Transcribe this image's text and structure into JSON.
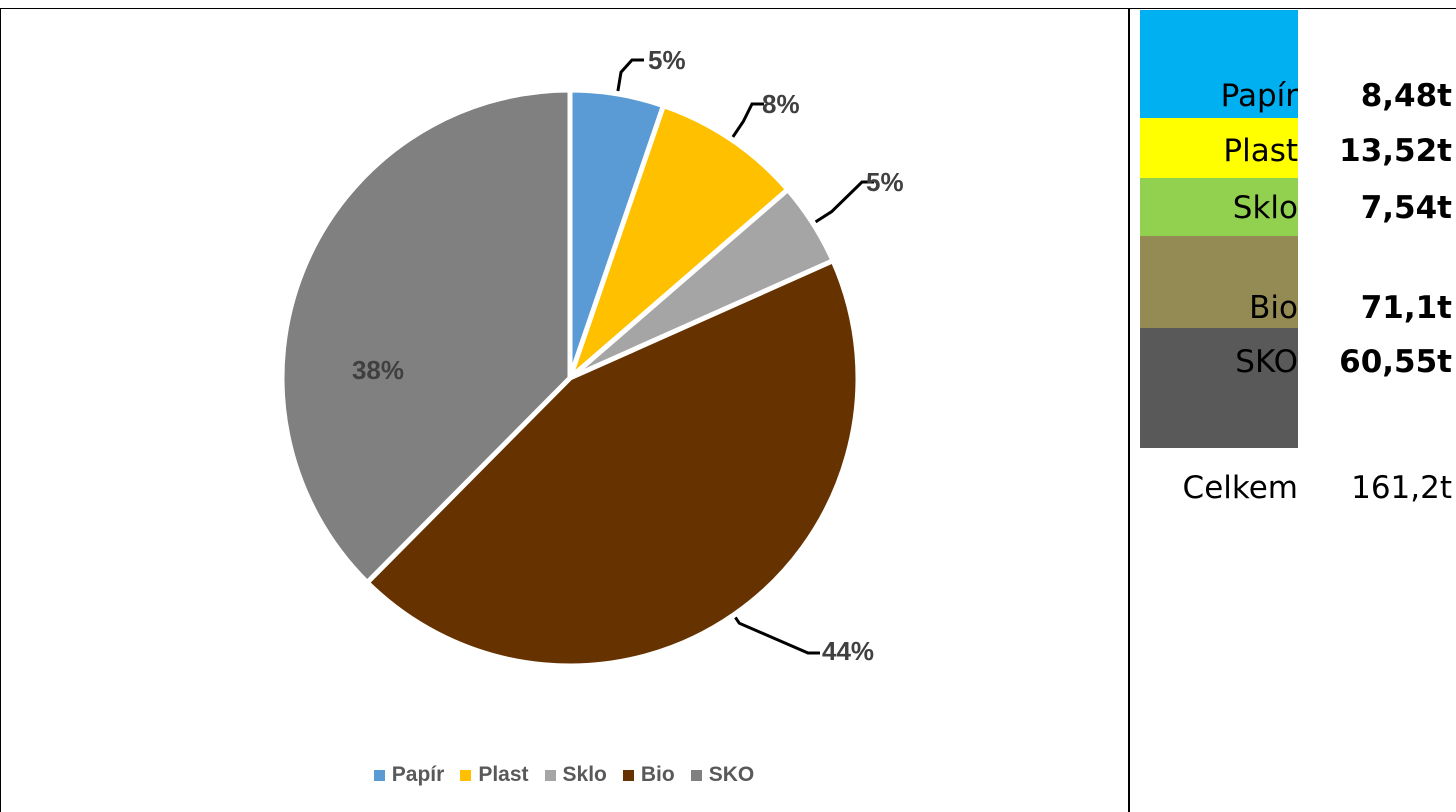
{
  "chart_data": {
    "type": "pie",
    "categories": [
      "Papír",
      "Plast",
      "Sklo",
      "Bio",
      "SKO"
    ],
    "values": [
      8.48,
      13.52,
      7.54,
      71.1,
      60.55
    ],
    "percent_labels": [
      "5%",
      "8%",
      "5%",
      "44%",
      "38%"
    ],
    "colors": [
      "#5b9bd5",
      "#ffc000",
      "#a5a5a5",
      "#663300",
      "#808080"
    ],
    "legend": [
      "Papír",
      "Plast",
      "Sklo",
      "Bio",
      "SKO"
    ],
    "legend_position": "bottom",
    "label_color": "#404040",
    "start_angle": "12 o'clock",
    "direction": "clockwise"
  },
  "summary": {
    "rows": [
      {
        "label": "Papír",
        "value": "8,48t",
        "color": "#00b0f0"
      },
      {
        "label": "Plast",
        "value": "13,52t",
        "color": "#ffff00"
      },
      {
        "label": "Sklo",
        "value": "7,54t",
        "color": "#92d050"
      },
      {
        "label": "Bio",
        "value": "71,1t",
        "color": "#948a54"
      },
      {
        "label": "SKO",
        "value": "60,55t",
        "color": "#595959"
      }
    ],
    "total_label": "Celkem",
    "total_value": "161,2t"
  }
}
